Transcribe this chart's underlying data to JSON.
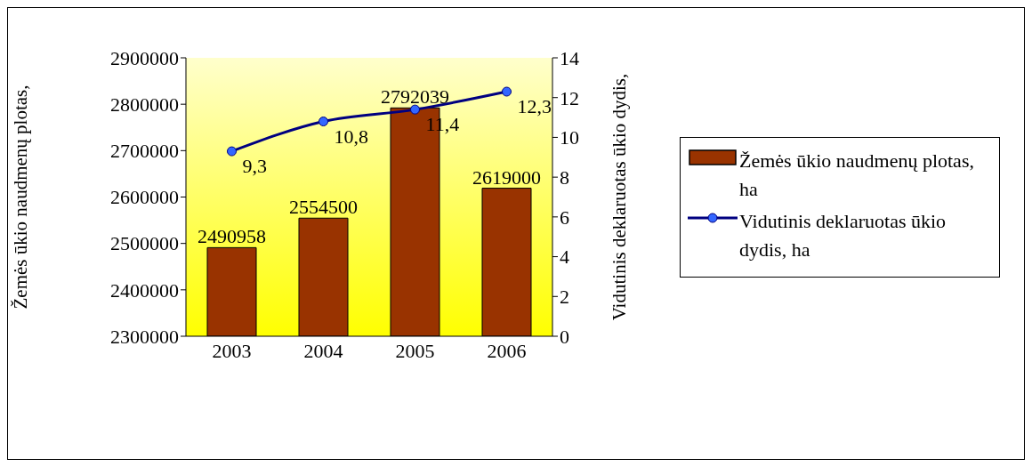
{
  "chart_data": {
    "type": "bar",
    "categories": [
      "2003",
      "2004",
      "2005",
      "2006"
    ],
    "series": [
      {
        "name": "Žemės ūkio naudmenų plotas, ha",
        "color": "#993300",
        "values": [
          2490958,
          2554500,
          2792039,
          2619000
        ]
      },
      {
        "name": "Vidutinis deklaruotas ūkio dydis, ha",
        "type": "line",
        "axis": "y2",
        "color": "#000080",
        "values": [
          9.3,
          10.8,
          11.4,
          12.3
        ],
        "value_labels": [
          "9,3",
          "10,8",
          "11,4",
          "12,3"
        ]
      }
    ],
    "ylabel": "Žemės ūkio naudmenų plotas,",
    "y2label": "Vidutinis deklaruotas ūkio dydis,",
    "ylim": [
      2300000,
      2900000
    ],
    "yticks": [
      2300000,
      2400000,
      2500000,
      2600000,
      2700000,
      2800000,
      2900000
    ],
    "y2lim": [
      0,
      14
    ],
    "y2ticks": [
      0,
      2,
      4,
      6,
      8,
      10,
      12,
      14
    ],
    "data_labels": true,
    "legend": "right",
    "marker": "circle"
  }
}
